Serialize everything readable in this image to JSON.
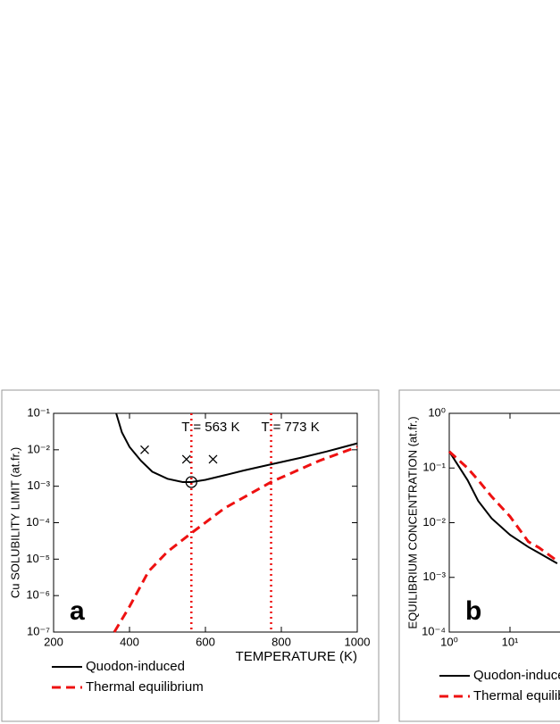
{
  "chart_data": [
    {
      "type": "line",
      "panel_label": "a",
      "xlabel": "TEMPERATURE (K)",
      "ylabel": "Cu SOLUBILITY LIMIT (at.fr.)",
      "xlim": [
        200,
        1000
      ],
      "ylim": [
        1e-07,
        0.1
      ],
      "ylog": true,
      "xlog": false,
      "xticks": [
        200,
        400,
        600,
        800,
        1000
      ],
      "yticks": [
        {
          "value": 0.1,
          "label": "10⁻¹"
        },
        {
          "value": 0.01,
          "label": "10⁻²"
        },
        {
          "value": 0.001,
          "label": "10⁻³"
        },
        {
          "value": 0.0001,
          "label": "10⁻⁴"
        },
        {
          "value": 1e-05,
          "label": "10⁻⁵"
        },
        {
          "value": 1e-06,
          "label": "10⁻⁶"
        },
        {
          "value": 1e-07,
          "label": "10⁻⁷"
        }
      ],
      "series": [
        {
          "name": "Quodon-induced",
          "color": "#000000",
          "dash": false,
          "x": [
            365,
            380,
            400,
            430,
            460,
            500,
            540,
            563,
            600,
            650,
            700,
            773,
            850,
            920,
            1000
          ],
          "values": [
            0.1,
            0.03,
            0.012,
            0.005,
            0.0025,
            0.0016,
            0.0013,
            0.0013,
            0.0015,
            0.002,
            0.0027,
            0.004,
            0.006,
            0.009,
            0.015
          ]
        },
        {
          "name": "Thermal equilibrium",
          "color": "#ee1111",
          "dash": true,
          "x": [
            360,
            400,
            450,
            500,
            563,
            650,
            773,
            900,
            1000
          ],
          "values": [
            1e-07,
            5e-07,
            4.6e-06,
            1.6e-05,
            5.2e-05,
            0.00025,
            0.0013,
            0.005,
            0.012
          ]
        }
      ],
      "markers": {
        "x": [
          440,
          550,
          620
        ],
        "values": [
          0.01,
          0.0055,
          0.0055
        ]
      },
      "circle": {
        "x": 563,
        "value": 0.0013
      },
      "vlines": [
        {
          "x": 563,
          "label": "T = 563 K"
        },
        {
          "x": 773,
          "label": "T = 773 K"
        }
      ]
    },
    {
      "type": "line",
      "panel_label": "b",
      "ylabel": "EQUILIBRIUM CONCENTRATION (at.fr.)",
      "xlim": [
        1,
        1000
      ],
      "ylim": [
        0.0001,
        1
      ],
      "ylog": true,
      "xlog": true,
      "xticks": [
        {
          "value": 1,
          "label": "10⁰"
        },
        {
          "value": 10,
          "label": "10¹"
        }
      ],
      "yticks": [
        {
          "value": 1,
          "label": "10⁰"
        },
        {
          "value": 0.1,
          "label": "10⁻¹"
        },
        {
          "value": 0.01,
          "label": "10⁻²"
        },
        {
          "value": 0.001,
          "label": "10⁻³"
        },
        {
          "value": 0.0001,
          "label": "10⁻⁴"
        }
      ],
      "series": [
        {
          "name": "Quodon-induced",
          "color": "#000000",
          "dash": false,
          "x": [
            1,
            2,
            3,
            5,
            10,
            20,
            30,
            60
          ],
          "values": [
            0.2,
            0.06,
            0.025,
            0.012,
            0.006,
            0.0036,
            0.0028,
            0.0018
          ]
        },
        {
          "name": "Thermal equilibrium",
          "color": "#ee1111",
          "dash": true,
          "x": [
            1,
            2,
            3,
            5,
            10,
            20,
            30,
            60
          ],
          "values": [
            0.2,
            0.1,
            0.06,
            0.03,
            0.013,
            0.0045,
            0.0035,
            0.002
          ]
        }
      ]
    }
  ]
}
